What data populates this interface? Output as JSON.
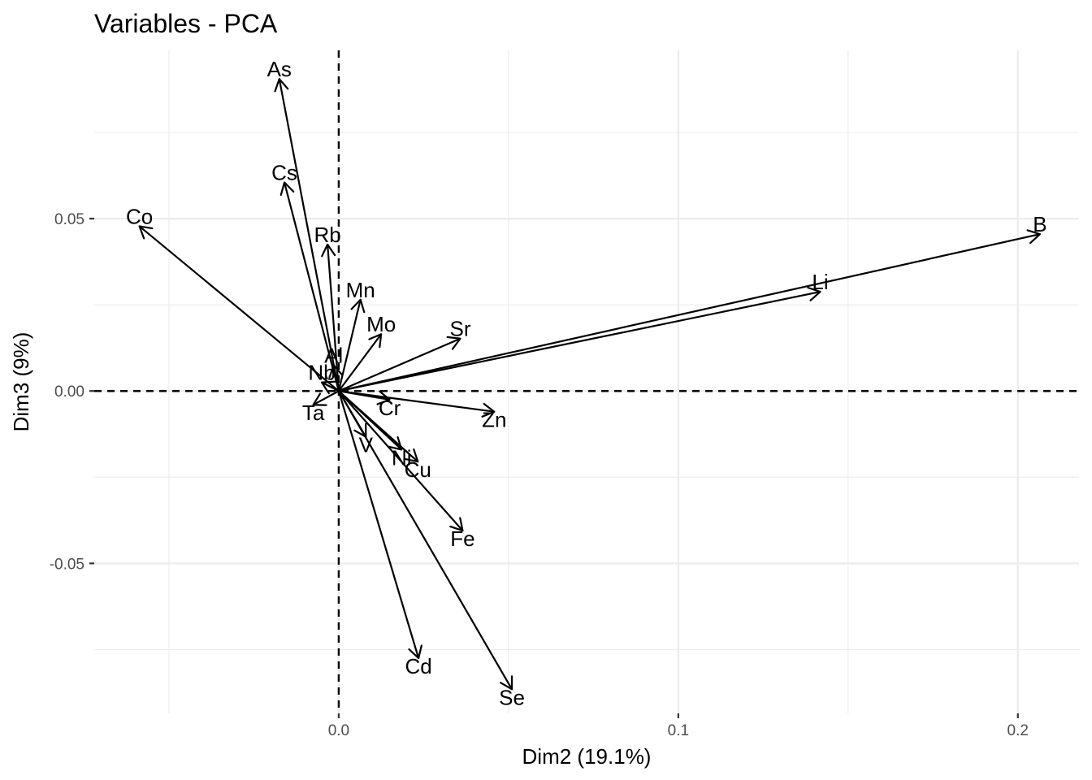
{
  "chart_data": {
    "type": "scatter",
    "subtype": "pca-variable-correlation-arrows",
    "title": "Variables - PCA",
    "xlabel": "Dim2 (19.1%)",
    "ylabel": "Dim3 (9%)",
    "xlim": [
      -0.072,
      0.218
    ],
    "ylim": [
      -0.0935,
      0.0988
    ],
    "xticks": [
      0.0,
      0.1,
      0.2
    ],
    "xtick_labels": [
      "0.0",
      "0.1",
      "0.2"
    ],
    "yticks": [
      -0.05,
      0.0,
      0.05
    ],
    "ytick_labels": [
      "-0.05",
      "0.00",
      "0.05"
    ],
    "grid": true,
    "reference_lines": {
      "x": 0,
      "y": 0,
      "style": "dashed"
    },
    "variables": [
      {
        "name": "As",
        "x": -0.0175,
        "y": 0.0905
      },
      {
        "name": "Cs",
        "x": -0.016,
        "y": 0.0605
      },
      {
        "name": "Co",
        "x": -0.0587,
        "y": 0.0478
      },
      {
        "name": "Rb",
        "x": -0.0033,
        "y": 0.0425
      },
      {
        "name": "Mn",
        "x": 0.0064,
        "y": 0.0265
      },
      {
        "name": "Mo",
        "x": 0.0125,
        "y": 0.0165
      },
      {
        "name": "Al",
        "x": -0.0015,
        "y": 0.0075
      },
      {
        "name": "Sr",
        "x": 0.0358,
        "y": 0.0152
      },
      {
        "name": "Nb",
        "x": -0.005,
        "y": 0.0025
      },
      {
        "name": "Ta",
        "x": -0.0075,
        "y": -0.004
      },
      {
        "name": "Cr",
        "x": 0.015,
        "y": -0.0025
      },
      {
        "name": "Zn",
        "x": 0.0458,
        "y": -0.006
      },
      {
        "name": "V",
        "x": 0.008,
        "y": -0.0133
      },
      {
        "name": "Ni",
        "x": 0.0185,
        "y": -0.017
      },
      {
        "name": "Cu",
        "x": 0.0233,
        "y": -0.0205
      },
      {
        "name": "Fe",
        "x": 0.0365,
        "y": -0.0405
      },
      {
        "name": "Cd",
        "x": 0.0235,
        "y": -0.0775
      },
      {
        "name": "Se",
        "x": 0.051,
        "y": -0.0865
      },
      {
        "name": "Li",
        "x": 0.1418,
        "y": 0.0288
      },
      {
        "name": "B",
        "x": 0.2065,
        "y": 0.0455
      }
    ]
  }
}
